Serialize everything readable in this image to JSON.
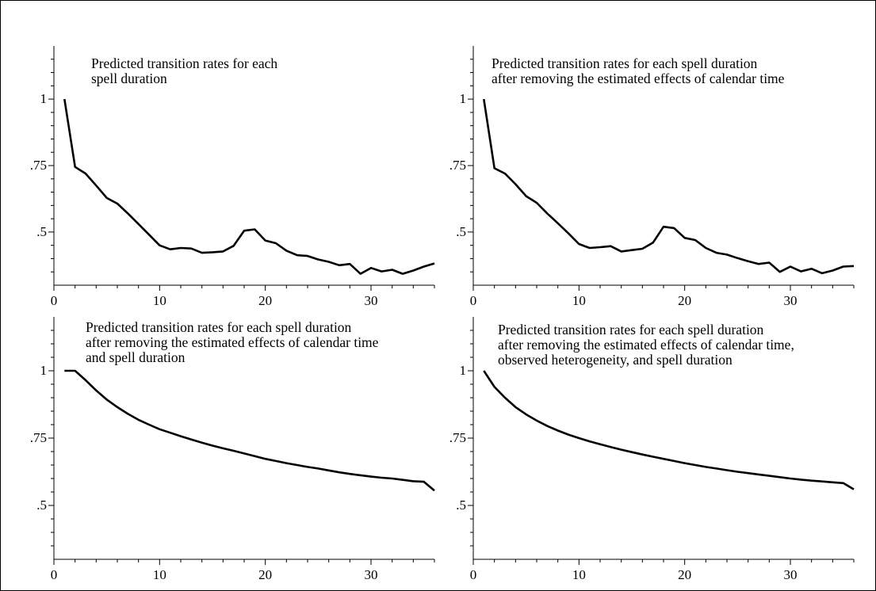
{
  "chart_data": [
    {
      "type": "line",
      "title_lines": [
        "Predicted transition rates for each",
        "spell duration"
      ],
      "xlabel": "",
      "ylabel": "",
      "xlim": [
        0,
        36
      ],
      "ylim": [
        0.3,
        1.2
      ],
      "x_ticks": [
        0,
        10,
        20,
        30
      ],
      "x_tick_labels": [
        "0",
        "10",
        "20",
        "30"
      ],
      "y_ticks": [
        1,
        0.75,
        0.5
      ],
      "y_tick_labels": [
        "1",
        ".75",
        ".5"
      ],
      "grid": false,
      "series": [
        {
          "x": [
            1,
            2,
            3,
            4,
            5,
            6,
            7,
            8,
            9,
            10,
            11,
            12,
            13,
            14,
            15,
            16,
            17,
            18,
            19,
            20,
            21,
            22,
            23,
            24,
            25,
            26,
            27,
            28,
            29,
            30,
            31,
            32,
            33,
            34,
            35,
            36
          ],
          "values": [
            1.0,
            0.745,
            0.72,
            0.675,
            0.628,
            0.607,
            0.57,
            0.53,
            0.49,
            0.45,
            0.435,
            0.44,
            0.438,
            0.422,
            0.424,
            0.427,
            0.448,
            0.505,
            0.51,
            0.468,
            0.458,
            0.43,
            0.413,
            0.41,
            0.397,
            0.388,
            0.375,
            0.38,
            0.343,
            0.365,
            0.352,
            0.358,
            0.343,
            0.355,
            0.37,
            0.382
          ]
        }
      ]
    },
    {
      "type": "line",
      "title_lines": [
        "Predicted transition rates for each spell duration",
        "after removing the estimated effects of calendar time"
      ],
      "xlabel": "",
      "ylabel": "",
      "xlim": [
        0,
        36
      ],
      "ylim": [
        0.3,
        1.2
      ],
      "x_ticks": [
        0,
        10,
        20,
        30
      ],
      "x_tick_labels": [
        "0",
        "10",
        "20",
        "30"
      ],
      "y_ticks": [
        1,
        0.75,
        0.5
      ],
      "y_tick_labels": [
        "1",
        ".75",
        ".5"
      ],
      "grid": false,
      "series": [
        {
          "x": [
            1,
            2,
            3,
            4,
            5,
            6,
            7,
            8,
            9,
            10,
            11,
            12,
            13,
            14,
            15,
            16,
            17,
            18,
            19,
            20,
            21,
            22,
            23,
            24,
            25,
            26,
            27,
            28,
            29,
            30,
            31,
            32,
            33,
            34,
            35,
            36
          ],
          "values": [
            1.0,
            0.74,
            0.72,
            0.68,
            0.635,
            0.61,
            0.57,
            0.533,
            0.495,
            0.455,
            0.44,
            0.443,
            0.447,
            0.427,
            0.432,
            0.437,
            0.46,
            0.52,
            0.515,
            0.478,
            0.47,
            0.44,
            0.422,
            0.415,
            0.402,
            0.39,
            0.38,
            0.385,
            0.35,
            0.37,
            0.352,
            0.362,
            0.345,
            0.355,
            0.37,
            0.372
          ]
        }
      ]
    },
    {
      "type": "line",
      "title_lines": [
        "Predicted transition rates for each spell duration",
        "after removing the estimated effects of calendar time",
        "and spell duration"
      ],
      "xlabel": "",
      "ylabel": "",
      "xlim": [
        0,
        36
      ],
      "ylim": [
        0.3,
        1.2
      ],
      "x_ticks": [
        0,
        10,
        20,
        30
      ],
      "x_tick_labels": [
        "0",
        "10",
        "20",
        "30"
      ],
      "y_ticks": [
        1,
        0.75,
        0.5
      ],
      "y_tick_labels": [
        "1",
        ".75",
        ".5"
      ],
      "grid": false,
      "series": [
        {
          "x": [
            1,
            2,
            3,
            4,
            5,
            6,
            7,
            8,
            9,
            10,
            11,
            12,
            13,
            14,
            15,
            16,
            17,
            18,
            19,
            20,
            21,
            22,
            23,
            24,
            25,
            26,
            27,
            28,
            29,
            30,
            31,
            32,
            33,
            34,
            35,
            36
          ],
          "values": [
            1.0,
            1.0,
            0.965,
            0.927,
            0.893,
            0.865,
            0.84,
            0.818,
            0.8,
            0.783,
            0.77,
            0.757,
            0.745,
            0.733,
            0.722,
            0.712,
            0.703,
            0.693,
            0.683,
            0.673,
            0.665,
            0.657,
            0.65,
            0.643,
            0.637,
            0.63,
            0.623,
            0.617,
            0.612,
            0.607,
            0.603,
            0.6,
            0.595,
            0.59,
            0.588,
            0.555
          ]
        }
      ]
    },
    {
      "type": "line",
      "title_lines": [
        "Predicted transition rates for each spell duration",
        "after removing the estimated effects of calendar time,",
        "observed heterogeneity, and spell duration"
      ],
      "xlabel": "",
      "ylabel": "",
      "xlim": [
        0,
        36
      ],
      "ylim": [
        0.3,
        1.2
      ],
      "x_ticks": [
        0,
        10,
        20,
        30
      ],
      "x_tick_labels": [
        "0",
        "10",
        "20",
        "30"
      ],
      "y_ticks": [
        1,
        0.75,
        0.5
      ],
      "y_tick_labels": [
        "1",
        ".75",
        ".5"
      ],
      "grid": false,
      "series": [
        {
          "x": [
            1,
            2,
            3,
            4,
            5,
            6,
            7,
            8,
            9,
            10,
            11,
            12,
            13,
            14,
            15,
            16,
            17,
            18,
            19,
            20,
            21,
            22,
            23,
            24,
            25,
            26,
            27,
            28,
            29,
            30,
            31,
            32,
            33,
            34,
            35,
            36
          ],
          "values": [
            1.0,
            0.94,
            0.9,
            0.865,
            0.838,
            0.815,
            0.795,
            0.778,
            0.763,
            0.75,
            0.738,
            0.727,
            0.717,
            0.707,
            0.698,
            0.689,
            0.681,
            0.673,
            0.665,
            0.657,
            0.65,
            0.643,
            0.637,
            0.631,
            0.625,
            0.62,
            0.615,
            0.61,
            0.605,
            0.6,
            0.596,
            0.592,
            0.589,
            0.586,
            0.583,
            0.56
          ]
        }
      ]
    }
  ]
}
